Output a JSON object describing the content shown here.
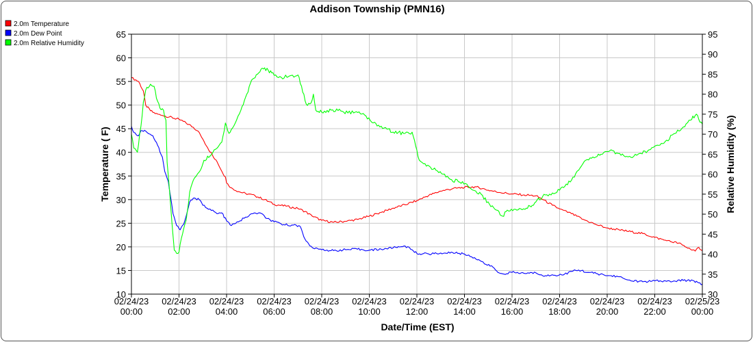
{
  "chart_data": {
    "type": "line",
    "title": "Addison Township (PMN16)",
    "xlabel": "Date/Time (EST)",
    "ylabel_left": "Temperature ( F)",
    "ylabel_right": "Relative Humidity (%)",
    "xlim_hours": [
      0,
      24
    ],
    "ylim_left": [
      10,
      65
    ],
    "ylim_right": [
      30,
      95
    ],
    "yticks_left": [
      10,
      15,
      20,
      25,
      30,
      35,
      40,
      45,
      50,
      55,
      60,
      65
    ],
    "yticks_right": [
      30,
      35,
      40,
      45,
      50,
      55,
      60,
      65,
      70,
      75,
      80,
      85,
      90,
      95
    ],
    "grid": true,
    "legend_position": "top-left",
    "xticks": [
      {
        "hour": 0,
        "date": "02/24/23",
        "time": "00:00"
      },
      {
        "hour": 2,
        "date": "02/24/23",
        "time": "02:00"
      },
      {
        "hour": 4,
        "date": "02/24/23",
        "time": "04:00"
      },
      {
        "hour": 6,
        "date": "02/24/23",
        "time": "06:00"
      },
      {
        "hour": 8,
        "date": "02/24/23",
        "time": "08:00"
      },
      {
        "hour": 10,
        "date": "02/24/23",
        "time": "10:00"
      },
      {
        "hour": 12,
        "date": "02/24/23",
        "time": "12:00"
      },
      {
        "hour": 14,
        "date": "02/24/23",
        "time": "14:00"
      },
      {
        "hour": 16,
        "date": "02/24/23",
        "time": "16:00"
      },
      {
        "hour": 18,
        "date": "02/24/23",
        "time": "18:00"
      },
      {
        "hour": 20,
        "date": "02/24/23",
        "time": "20:00"
      },
      {
        "hour": 22,
        "date": "02/24/23",
        "time": "22:00"
      },
      {
        "hour": 24,
        "date": "02/25/23",
        "time": "00:00"
      }
    ],
    "series": [
      {
        "name": "2.0m Temperature",
        "color": "#ff0000",
        "axis": "left",
        "points": [
          [
            0,
            55.8
          ],
          [
            0.3,
            55
          ],
          [
            0.5,
            53
          ],
          [
            0.6,
            50
          ],
          [
            0.8,
            48.8
          ],
          [
            1,
            48.2
          ],
          [
            1.3,
            47.8
          ],
          [
            1.6,
            47.5
          ],
          [
            1.8,
            47.2
          ],
          [
            2,
            47
          ],
          [
            2.3,
            46.2
          ],
          [
            2.6,
            45.3
          ],
          [
            2.8,
            44.5
          ],
          [
            3,
            42.8
          ],
          [
            3.2,
            41
          ],
          [
            3.4,
            39.5
          ],
          [
            3.6,
            38
          ],
          [
            3.8,
            36
          ],
          [
            3.95,
            34.8
          ],
          [
            4,
            33.5
          ],
          [
            4.2,
            32.5
          ],
          [
            4.5,
            31.7
          ],
          [
            4.8,
            31.3
          ],
          [
            5.2,
            30.8
          ],
          [
            5.6,
            30
          ],
          [
            6,
            29
          ],
          [
            6.5,
            28.6
          ],
          [
            7,
            28.1
          ],
          [
            7.3,
            27.5
          ],
          [
            7.6,
            26.5
          ],
          [
            8,
            25.6
          ],
          [
            8.5,
            25.2
          ],
          [
            9,
            25.4
          ],
          [
            9.5,
            25.8
          ],
          [
            10,
            26.5
          ],
          [
            10.5,
            27.3
          ],
          [
            11,
            28.2
          ],
          [
            11.5,
            28.9
          ],
          [
            12,
            29.8
          ],
          [
            12.5,
            30.9
          ],
          [
            13,
            31.8
          ],
          [
            13.5,
            32.3
          ],
          [
            14,
            32.6
          ],
          [
            14.5,
            32.7
          ],
          [
            15,
            32
          ],
          [
            15.5,
            31.5
          ],
          [
            16,
            31.2
          ],
          [
            16.5,
            31
          ],
          [
            17,
            30.8
          ],
          [
            17.3,
            30
          ],
          [
            17.7,
            28.8
          ],
          [
            18,
            28
          ],
          [
            18.5,
            27
          ],
          [
            19,
            25.8
          ],
          [
            19.5,
            24.8
          ],
          [
            20,
            24
          ],
          [
            20.5,
            23.6
          ],
          [
            21,
            23.2
          ],
          [
            21.5,
            22.8
          ],
          [
            22,
            22
          ],
          [
            22.5,
            21.3
          ],
          [
            23,
            20.8
          ],
          [
            23.5,
            19.5
          ],
          [
            23.7,
            19.1
          ],
          [
            23.85,
            19.9
          ],
          [
            24,
            19.2
          ]
        ]
      },
      {
        "name": "2.0m Dew Point",
        "color": "#0000ff",
        "axis": "left",
        "points": [
          [
            0,
            45.5
          ],
          [
            0.1,
            44.2
          ],
          [
            0.3,
            43.5
          ],
          [
            0.4,
            44.6
          ],
          [
            0.6,
            44.5
          ],
          [
            0.9,
            43.5
          ],
          [
            1.1,
            41.5
          ],
          [
            1.3,
            39
          ],
          [
            1.4,
            36
          ],
          [
            1.55,
            33.8
          ],
          [
            1.65,
            30.5
          ],
          [
            1.75,
            27
          ],
          [
            1.9,
            24.5
          ],
          [
            2.05,
            23.6
          ],
          [
            2.2,
            24.8
          ],
          [
            2.3,
            26.5
          ],
          [
            2.45,
            29.5
          ],
          [
            2.6,
            30.3
          ],
          [
            2.85,
            30
          ],
          [
            3,
            28.8
          ],
          [
            3.3,
            28
          ],
          [
            3.6,
            27
          ],
          [
            3.8,
            27.2
          ],
          [
            4,
            25.5
          ],
          [
            4.2,
            24.5
          ],
          [
            4.5,
            25.3
          ],
          [
            4.8,
            26.3
          ],
          [
            5.1,
            27
          ],
          [
            5.4,
            27.2
          ],
          [
            5.7,
            26
          ],
          [
            6,
            25.3
          ],
          [
            6.4,
            24.7
          ],
          [
            6.8,
            24.6
          ],
          [
            7.1,
            24.3
          ],
          [
            7.3,
            21.6
          ],
          [
            7.5,
            20.2
          ],
          [
            7.7,
            19.6
          ],
          [
            8,
            19.4
          ],
          [
            8.5,
            19.2
          ],
          [
            9,
            19.4
          ],
          [
            9.5,
            19.5
          ],
          [
            10,
            19.3
          ],
          [
            10.5,
            19.5
          ],
          [
            11,
            19.8
          ],
          [
            11.5,
            20.2
          ],
          [
            11.8,
            19.4
          ],
          [
            12,
            18.6
          ],
          [
            12.5,
            18.5
          ],
          [
            13,
            18.7
          ],
          [
            13.5,
            18.8
          ],
          [
            14,
            18.5
          ],
          [
            14.3,
            17.9
          ],
          [
            14.6,
            17.3
          ],
          [
            14.9,
            16.3
          ],
          [
            15.2,
            15.7
          ],
          [
            15.4,
            14.6
          ],
          [
            15.6,
            14.3
          ],
          [
            16,
            14.6
          ],
          [
            16.5,
            14.4
          ],
          [
            17,
            14.5
          ],
          [
            17.4,
            13.9
          ],
          [
            17.8,
            14
          ],
          [
            18.2,
            14.2
          ],
          [
            18.5,
            14.8
          ],
          [
            18.8,
            15.1
          ],
          [
            19.2,
            14.6
          ],
          [
            19.6,
            14.3
          ],
          [
            20,
            13.9
          ],
          [
            20.4,
            13.8
          ],
          [
            20.7,
            13.3
          ],
          [
            21,
            12.8
          ],
          [
            21.5,
            12.6
          ],
          [
            22,
            12.8
          ],
          [
            22.5,
            12.7
          ],
          [
            22.8,
            12.8
          ],
          [
            23.2,
            12.9
          ],
          [
            23.6,
            12.9
          ],
          [
            23.8,
            12.5
          ],
          [
            24,
            12.1
          ]
        ]
      },
      {
        "name": "2.0m Relative Humidity",
        "color": "#00ff00",
        "axis": "right",
        "points": [
          [
            0,
            70
          ],
          [
            0.1,
            66.5
          ],
          [
            0.25,
            65.5
          ],
          [
            0.4,
            72
          ],
          [
            0.5,
            78
          ],
          [
            0.6,
            81
          ],
          [
            0.8,
            82.5
          ],
          [
            0.95,
            82
          ],
          [
            1.05,
            79
          ],
          [
            1.2,
            76.5
          ],
          [
            1.35,
            76
          ],
          [
            1.45,
            73.5
          ],
          [
            1.5,
            63
          ],
          [
            1.6,
            56
          ],
          [
            1.7,
            48
          ],
          [
            1.8,
            41
          ],
          [
            1.9,
            40.2
          ],
          [
            2,
            40.5
          ],
          [
            2.1,
            44
          ],
          [
            2.3,
            48.5
          ],
          [
            2.45,
            55.5
          ],
          [
            2.6,
            58.5
          ],
          [
            2.9,
            61
          ],
          [
            3.05,
            63.5
          ],
          [
            3.3,
            64.5
          ],
          [
            3.6,
            66.5
          ],
          [
            3.8,
            68
          ],
          [
            3.95,
            72.8
          ],
          [
            4.1,
            70.2
          ],
          [
            4.3,
            72
          ],
          [
            4.6,
            76
          ],
          [
            4.85,
            80
          ],
          [
            5.05,
            83.5
          ],
          [
            5.3,
            85
          ],
          [
            5.5,
            86.5
          ],
          [
            5.75,
            86
          ],
          [
            6,
            84.7
          ],
          [
            6.3,
            84.2
          ],
          [
            6.6,
            84.4
          ],
          [
            7,
            84.8
          ],
          [
            7.15,
            82
          ],
          [
            7.35,
            77.5
          ],
          [
            7.55,
            77.8
          ],
          [
            7.65,
            80
          ],
          [
            7.75,
            76
          ],
          [
            8,
            75.5
          ],
          [
            8.4,
            76
          ],
          [
            8.8,
            75.8
          ],
          [
            9.1,
            75.3
          ],
          [
            9.4,
            75.5
          ],
          [
            9.8,
            74.8
          ],
          [
            10.1,
            73
          ],
          [
            10.5,
            72
          ],
          [
            10.8,
            71.3
          ],
          [
            11,
            70.5
          ],
          [
            11.5,
            70.2
          ],
          [
            11.8,
            70.5
          ],
          [
            11.95,
            67
          ],
          [
            12.1,
            63.5
          ],
          [
            12.4,
            62
          ],
          [
            12.8,
            61
          ],
          [
            13.1,
            60
          ],
          [
            13.4,
            58.7
          ],
          [
            13.8,
            58
          ],
          [
            14.1,
            57.5
          ],
          [
            14.3,
            56.2
          ],
          [
            14.7,
            55
          ],
          [
            15.05,
            52.5
          ],
          [
            15.35,
            51
          ],
          [
            15.6,
            49.5
          ],
          [
            15.8,
            51
          ],
          [
            16.2,
            51
          ],
          [
            16.6,
            51.5
          ],
          [
            16.85,
            52.2
          ],
          [
            17.05,
            53.5
          ],
          [
            17.4,
            54.8
          ],
          [
            17.7,
            55.3
          ],
          [
            18,
            56
          ],
          [
            18.5,
            58.5
          ],
          [
            18.8,
            61
          ],
          [
            19.1,
            63.5
          ],
          [
            19.4,
            64.3
          ],
          [
            19.8,
            65
          ],
          [
            20.1,
            65.8
          ],
          [
            20.4,
            65.3
          ],
          [
            20.7,
            64.6
          ],
          [
            21,
            64.2
          ],
          [
            21.3,
            65
          ],
          [
            21.7,
            65.8
          ],
          [
            22,
            67
          ],
          [
            22.5,
            68.5
          ],
          [
            22.9,
            70.3
          ],
          [
            23.2,
            71.8
          ],
          [
            23.5,
            73.5
          ],
          [
            23.75,
            75
          ],
          [
            23.9,
            73
          ],
          [
            24,
            72.5
          ]
        ]
      }
    ]
  }
}
